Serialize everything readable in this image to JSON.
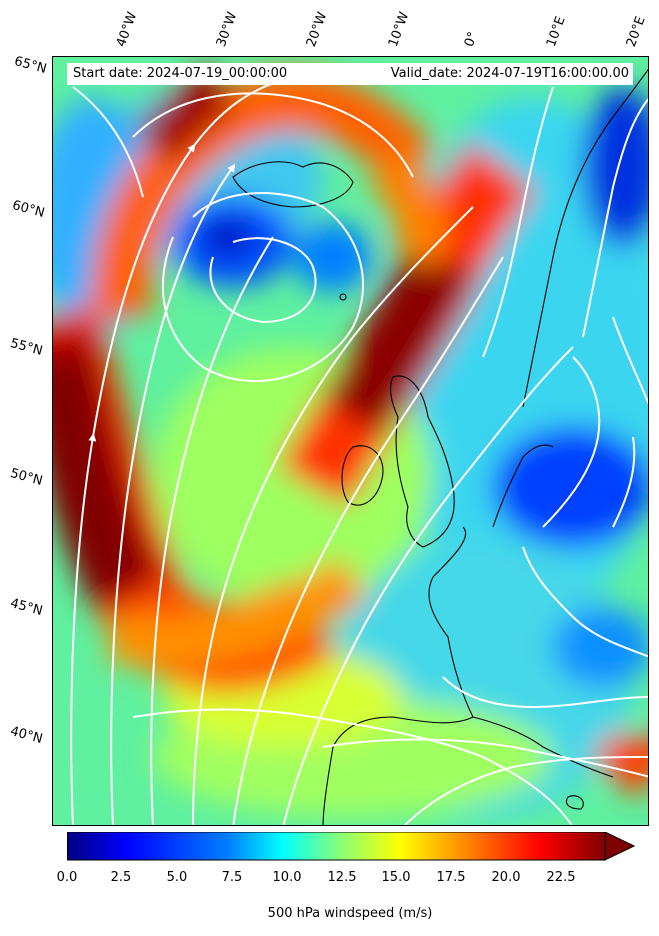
{
  "map": {
    "start_date": "Start date: 2024-07-19_00:00:00",
    "valid_date": "Valid_date: 2024-07-19T16:00:00.00",
    "lon_labels": [
      "40°W",
      "30°W",
      "20°W",
      "10°W",
      "0°",
      "10°E",
      "20°E"
    ],
    "lat_labels": [
      "65°N",
      "60°N",
      "55°N",
      "50°N",
      "45°N",
      "40°N"
    ],
    "variable": "500 hPa windspeed",
    "streamline_color": "#ffffff",
    "coastline_color": "#000000"
  },
  "colorbar": {
    "label": "500 hPa windspeed (m/s)",
    "ticks": [
      "0.0",
      "2.5",
      "5.0",
      "7.5",
      "10.0",
      "12.5",
      "15.0",
      "17.5",
      "20.0",
      "22.5"
    ],
    "min": 0,
    "max": 25,
    "extend": "max",
    "colormap": "jet",
    "colors": [
      "#00007f",
      "#0000ff",
      "#007fff",
      "#00ffff",
      "#7fff7f",
      "#ffff00",
      "#ff7f00",
      "#ff0000",
      "#7f0000"
    ]
  }
}
